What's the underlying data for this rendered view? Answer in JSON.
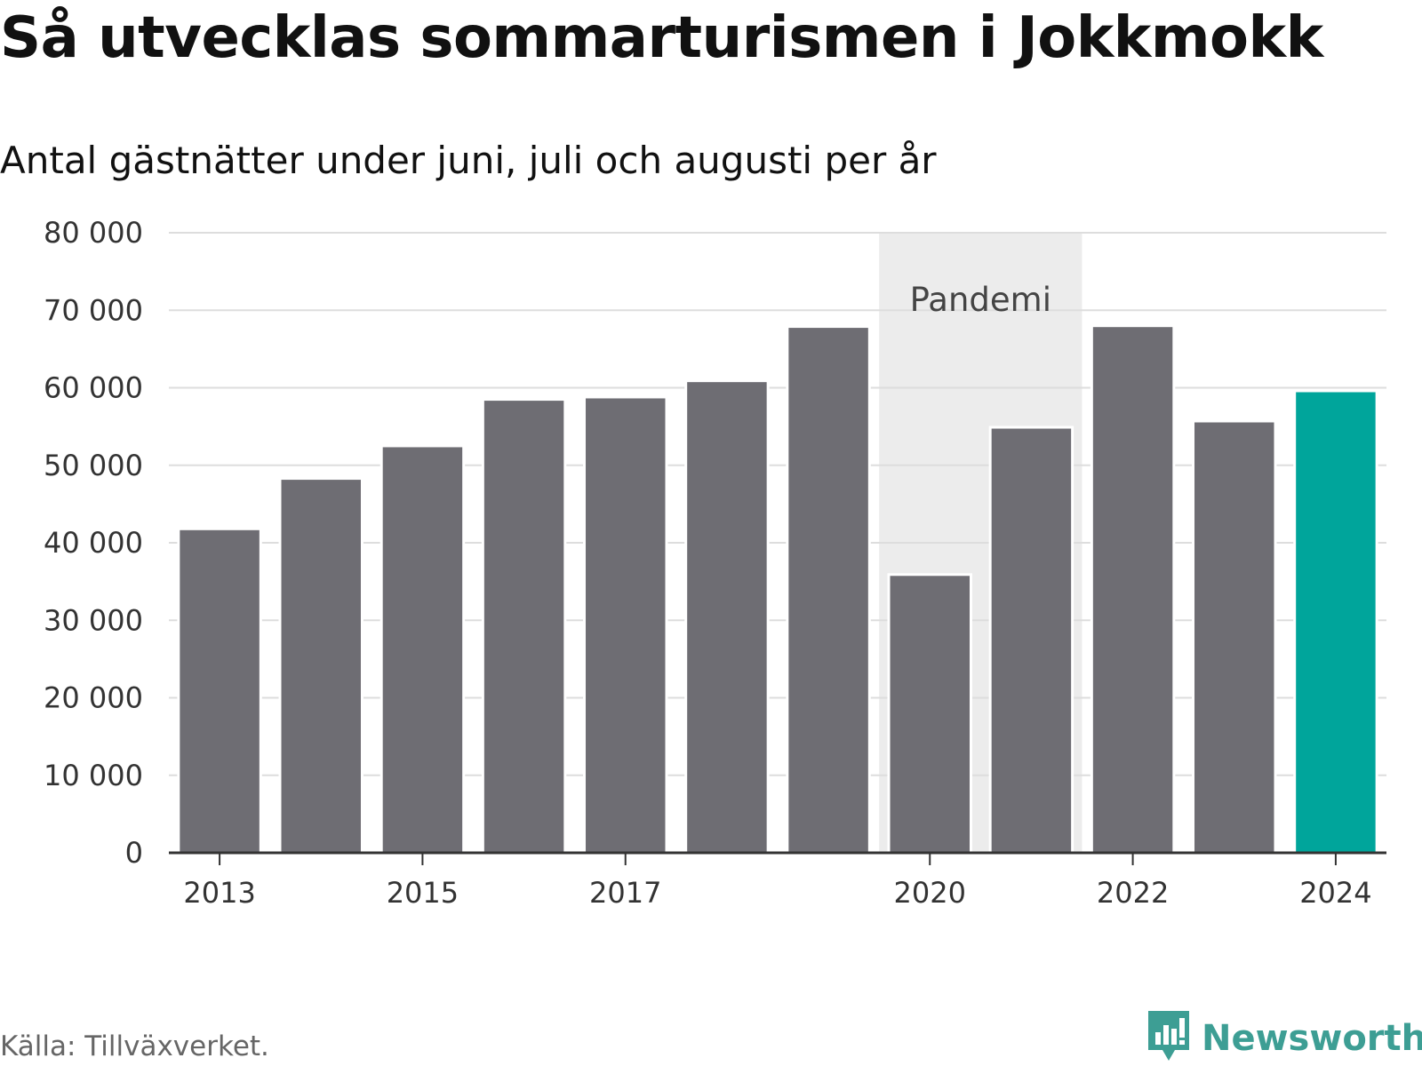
{
  "title": "Så utvecklas sommarturismen i Jokkmokk",
  "subtitle": "Antal gästnätter under juni, juli och augusti per år",
  "source": "Källa: Tillväxverket.",
  "logo": {
    "text": "Newsworthy",
    "icon": "bar-chart-bubble-icon",
    "color": "#3d9e94"
  },
  "chart_data": {
    "type": "bar",
    "categories": [
      "2013",
      "2014",
      "2015",
      "2016",
      "2017",
      "2018",
      "2019",
      "2020",
      "2021",
      "2022",
      "2023",
      "2024"
    ],
    "values": [
      41800,
      48300,
      52500,
      58500,
      58800,
      60900,
      67900,
      35900,
      54900,
      68000,
      55700,
      59600
    ],
    "x_tick_labels": [
      "2013",
      "2015",
      "2017",
      "2020",
      "2022",
      "2024"
    ],
    "y_ticks": [
      0,
      10000,
      20000,
      30000,
      40000,
      50000,
      60000,
      70000,
      80000
    ],
    "y_tick_labels": [
      "0",
      "10 000",
      "20 000",
      "30 000",
      "40 000",
      "50 000",
      "60 000",
      "70 000",
      "80 000"
    ],
    "ylim": [
      0,
      80000
    ],
    "xlabel": "",
    "ylabel": "",
    "grid": true,
    "colors": {
      "bar": "#6e6d73",
      "highlight": "#00a59b",
      "shade": "#ececec",
      "grid": "#dddddd",
      "axis": "#333333"
    },
    "highlight_category": "2024",
    "annotation": {
      "label": "Pandemi",
      "from": "2020",
      "to": "2021"
    }
  }
}
